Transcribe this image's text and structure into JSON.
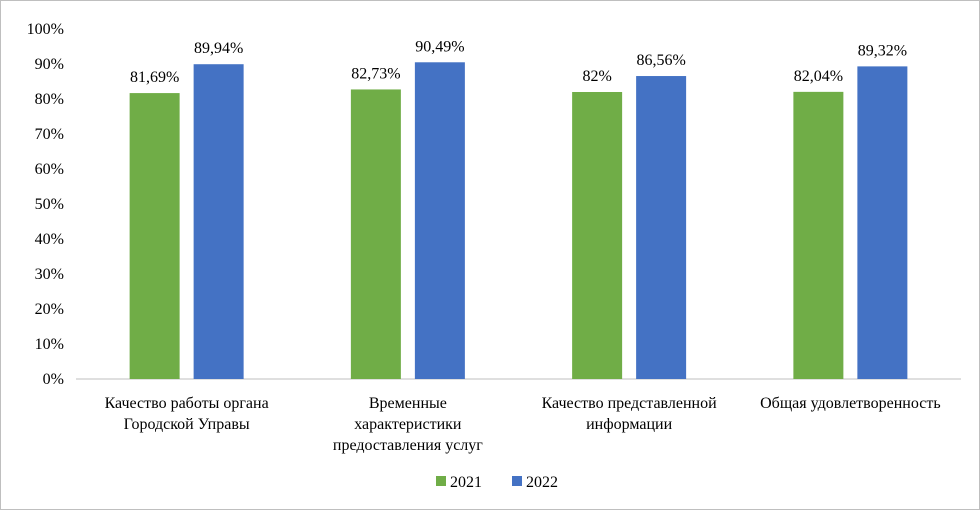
{
  "chart_data": {
    "type": "bar",
    "categories": [
      [
        "Качество работы органа",
        "Городской Управы"
      ],
      [
        "Временные",
        "характеристики",
        "предоставления услуг"
      ],
      [
        "Качество представленной",
        "информации"
      ],
      [
        "Общая удовлетворенность"
      ]
    ],
    "series": [
      {
        "name": "2021",
        "color": "#70ad47",
        "values": [
          81.69,
          82.73,
          82,
          82.04
        ],
        "labels": [
          "81,69%",
          "82,73%",
          "82%",
          "82,04%"
        ]
      },
      {
        "name": "2022",
        "color": "#4472c4",
        "values": [
          89.94,
          90.49,
          86.56,
          89.32
        ],
        "labels": [
          "89,94%",
          "90,49%",
          "86,56%",
          "89,32%"
        ]
      }
    ],
    "ylim": [
      0,
      100
    ],
    "yticks": [
      "0%",
      "10%",
      "20%",
      "30%",
      "40%",
      "50%",
      "60%",
      "70%",
      "80%",
      "90%",
      "100%"
    ],
    "grid": false,
    "legend": "bottom"
  }
}
